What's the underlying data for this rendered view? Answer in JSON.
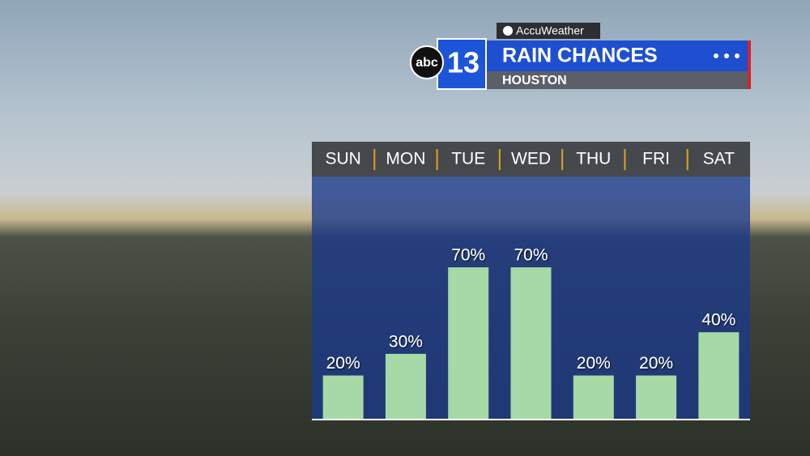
{
  "branding": {
    "network": "abc",
    "channel": "13",
    "provider": "AccuWeather"
  },
  "chart_data": {
    "type": "bar",
    "title": "RAIN CHANCES",
    "subtitle": "HOUSTON",
    "categories": [
      "SUN",
      "MON",
      "TUE",
      "WED",
      "THU",
      "FRI",
      "SAT"
    ],
    "values": [
      20,
      30,
      70,
      70,
      20,
      20,
      40
    ],
    "value_labels": [
      "20%",
      "30%",
      "70%",
      "70%",
      "20%",
      "20%",
      "40%"
    ],
    "color": "#a6d9a6",
    "ylim": [
      0,
      100
    ]
  }
}
